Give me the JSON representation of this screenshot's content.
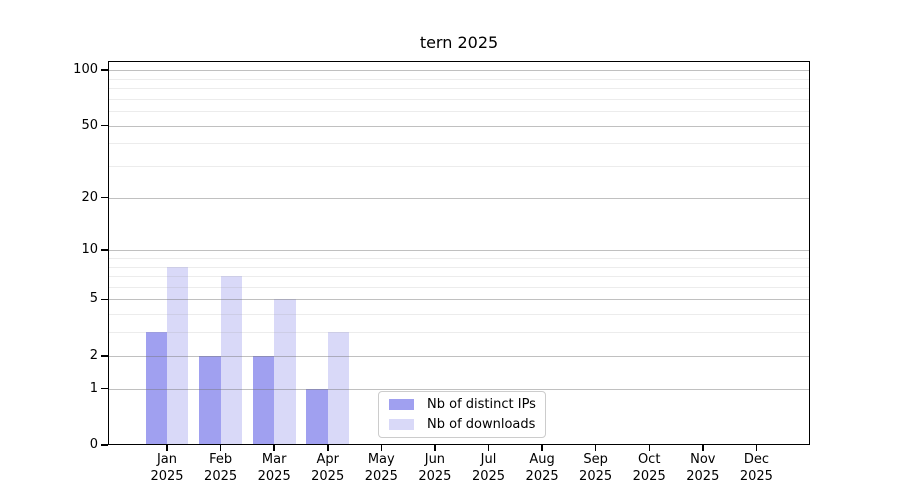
{
  "chart_data": {
    "type": "bar",
    "title": "tern 2025",
    "categories": [
      "Jan",
      "Feb",
      "Mar",
      "Apr",
      "May",
      "Jun",
      "Jul",
      "Aug",
      "Sep",
      "Oct",
      "Nov",
      "Dec"
    ],
    "year_label": "2025",
    "series": [
      {
        "name": "Nb of distinct IPs",
        "color": "#a0a0f0",
        "values": [
          3,
          2,
          2,
          1,
          0,
          0,
          0,
          0,
          0,
          0,
          0,
          0
        ]
      },
      {
        "name": "Nb of downloads",
        "color": "#d9d9f8",
        "values": [
          8,
          7,
          5,
          3,
          0,
          0,
          0,
          0,
          0,
          0,
          0,
          0
        ]
      }
    ],
    "yscale": "log1p",
    "ylim": [
      0,
      112
    ],
    "y_ticks": [
      0,
      1,
      2,
      5,
      10,
      20,
      50,
      100
    ],
    "y_minor_gridlines": [
      3,
      4,
      6,
      7,
      8,
      9,
      30,
      40,
      60,
      70,
      80,
      90
    ],
    "grid": "horizontal",
    "legend_position": "bottom-center"
  }
}
